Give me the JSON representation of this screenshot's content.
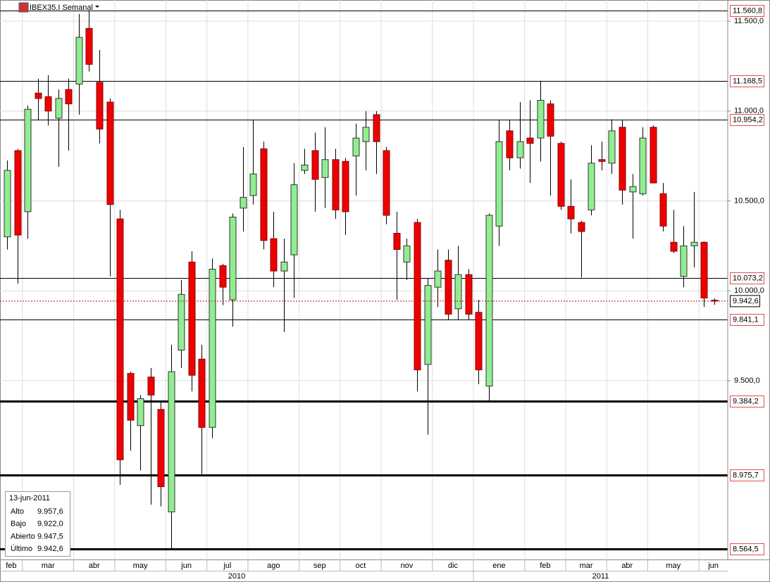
{
  "chart_data": {
    "type": "candlestick",
    "title": "IBEX35.I Semanal",
    "up_color": "#90ee90",
    "down_color": "#ee0000",
    "ylim": [
      8505,
      11618
    ],
    "yticks": [
      {
        "value": 11500,
        "label": "11.500,0"
      },
      {
        "value": 11000,
        "label": "11.000,0"
      },
      {
        "value": 10500,
        "label": "10.500,0"
      },
      {
        "value": 10000,
        "label": "10.000,0"
      },
      {
        "value": 9500,
        "label": "9.500,0"
      }
    ],
    "grid": true,
    "levels": [
      {
        "value": 11560.8,
        "label": "11.560,8",
        "style": "thin"
      },
      {
        "value": 11168.5,
        "label": "11.168,5",
        "style": "thin"
      },
      {
        "value": 10954.2,
        "label": "10.954,2",
        "style": "thin"
      },
      {
        "value": 10073.2,
        "label": "10.073,2",
        "style": "thin"
      },
      {
        "value": 9841.1,
        "label": "9.841,1",
        "style": "thin"
      },
      {
        "value": 9384.2,
        "label": "9.384,2",
        "style": "thick"
      },
      {
        "value": 8975.7,
        "label": "8.975,7",
        "style": "thick"
      },
      {
        "value": 8564.5,
        "label": "8.564,5",
        "style": "thick"
      }
    ],
    "last_price": {
      "value": 9942.6,
      "label": "9.942,6"
    },
    "categories": [
      "feb",
      null,
      "mar",
      null,
      null,
      null,
      null,
      "abr",
      null,
      null,
      null,
      "may",
      null,
      null,
      null,
      null,
      "jun",
      null,
      null,
      null,
      "jul",
      null,
      null,
      null,
      "ago",
      null,
      null,
      null,
      null,
      "sep",
      null,
      null,
      null,
      "oct",
      null,
      null,
      null,
      "nov",
      null,
      null,
      null,
      null,
      "dic",
      null,
      null,
      null,
      "ene",
      null,
      null,
      null,
      null,
      "feb",
      null,
      null,
      null,
      "mar",
      null,
      null,
      null,
      "abr",
      null,
      null,
      null,
      "may",
      null,
      null,
      null,
      null,
      "jun",
      null
    ],
    "years": [
      "2010",
      null,
      null,
      null,
      null,
      null,
      null,
      null,
      null,
      null,
      null,
      null,
      null,
      null,
      null,
      null,
      null,
      null,
      null,
      null,
      null,
      null,
      null,
      null,
      null,
      null,
      null,
      null,
      null,
      null,
      null,
      null,
      null,
      null,
      null,
      null,
      null,
      null,
      null,
      null,
      null,
      null,
      null,
      null,
      null,
      null,
      "2011",
      null,
      null,
      null,
      null,
      null,
      null,
      null,
      null,
      null,
      null,
      null,
      null,
      null,
      null,
      null,
      null,
      null,
      null,
      null,
      null,
      null,
      null,
      null
    ],
    "candles": [
      [
        10300,
        10725,
        10230,
        10670
      ],
      [
        10780,
        10790,
        10040,
        10310
      ],
      [
        10440,
        11030,
        10290,
        11010
      ],
      [
        11100,
        11180,
        10950,
        11070
      ],
      [
        11080,
        11200,
        10920,
        11000
      ],
      [
        10960,
        11120,
        10690,
        11070
      ],
      [
        11120,
        11180,
        10780,
        11040
      ],
      [
        11150,
        11540,
        10980,
        11410
      ],
      [
        11460,
        11560,
        11220,
        11260
      ],
      [
        11160,
        11340,
        10820,
        10900
      ],
      [
        11050,
        11070,
        10080,
        10480
      ],
      [
        10400,
        10450,
        8920,
        9060
      ],
      [
        9540,
        9550,
        9110,
        9280
      ],
      [
        9250,
        9420,
        9000,
        9400
      ],
      [
        9520,
        9570,
        8810,
        9420
      ],
      [
        9340,
        9380,
        8800,
        8910
      ],
      [
        8770,
        9700,
        8564.5,
        9550
      ],
      [
        9670,
        10060,
        9570,
        9980
      ],
      [
        10160,
        10220,
        9440,
        9530
      ],
      [
        9620,
        9700,
        8980,
        9240
      ],
      [
        9240,
        10180,
        9180,
        10120
      ],
      [
        10140,
        10150,
        9920,
        10020
      ],
      [
        9950,
        10430,
        9800,
        10410
      ],
      [
        10460,
        10800,
        10330,
        10520
      ],
      [
        10530,
        10950,
        10480,
        10650
      ],
      [
        10790,
        10830,
        10230,
        10280
      ],
      [
        10290,
        10440,
        10020,
        10110
      ],
      [
        10110,
        10290,
        9770,
        10160
      ],
      [
        10200,
        10710,
        9960,
        10590
      ],
      [
        10670,
        10790,
        10650,
        10700
      ],
      [
        10780,
        10880,
        10440,
        10620
      ],
      [
        10630,
        10910,
        10460,
        10730
      ],
      [
        10730,
        10790,
        10400,
        10450
      ],
      [
        10720,
        10740,
        10310,
        10440
      ],
      [
        10750,
        10930,
        10530,
        10850
      ],
      [
        10830,
        11000,
        10670,
        10910
      ],
      [
        10980,
        11000,
        10650,
        10830
      ],
      [
        10780,
        10800,
        10370,
        10420
      ],
      [
        10320,
        10440,
        9950,
        10230
      ],
      [
        10160,
        10290,
        10060,
        10250
      ],
      [
        10380,
        10400,
        9440,
        9560
      ],
      [
        9590,
        10070,
        9200,
        10030
      ],
      [
        10020,
        10230,
        9910,
        10110
      ],
      [
        10170,
        10230,
        9840,
        9870
      ],
      [
        9900,
        10250,
        9840,
        10090
      ],
      [
        10090,
        10120,
        9840,
        9870
      ],
      [
        9880,
        9950,
        9480,
        9560
      ],
      [
        9470,
        10430,
        9384.2,
        10420
      ],
      [
        10360,
        10950,
        10250,
        10830
      ],
      [
        10890,
        10950,
        10670,
        10740
      ],
      [
        10740,
        11050,
        10680,
        10830
      ],
      [
        10850,
        11060,
        10600,
        10820
      ],
      [
        10850,
        11168.5,
        10720,
        11060
      ],
      [
        11040,
        11060,
        10530,
        10860
      ],
      [
        10820,
        10830,
        10450,
        10470
      ],
      [
        10470,
        10620,
        10320,
        10400
      ],
      [
        10380,
        10390,
        10073.2,
        10330
      ],
      [
        10450,
        10810,
        10420,
        10710
      ],
      [
        10730,
        10830,
        10670,
        10720
      ],
      [
        10710,
        10954.2,
        10650,
        10890
      ],
      [
        10910,
        10950,
        10480,
        10560
      ],
      [
        10550,
        10650,
        10290,
        10580
      ],
      [
        10540,
        10910,
        10530,
        10850
      ],
      [
        10910,
        10920,
        10600,
        10600
      ],
      [
        10540,
        10600,
        10330,
        10360
      ],
      [
        10270,
        10450,
        10210,
        10220
      ],
      [
        10080,
        10360,
        10020,
        10250
      ],
      [
        10250,
        10550,
        10130,
        10270
      ],
      [
        10270,
        10275,
        9910,
        9960
      ],
      [
        9947.5,
        9957.6,
        9922.0,
        9942.6
      ]
    ],
    "info": {
      "date": "13-jun-2011",
      "rows": [
        {
          "label": "Alto",
          "value": "9.957,6"
        },
        {
          "label": "Bajo",
          "value": "9.922,0"
        },
        {
          "label": "Abierto",
          "value": "9.947,5"
        },
        {
          "label": "Último",
          "value": "9.942,6"
        }
      ]
    }
  }
}
